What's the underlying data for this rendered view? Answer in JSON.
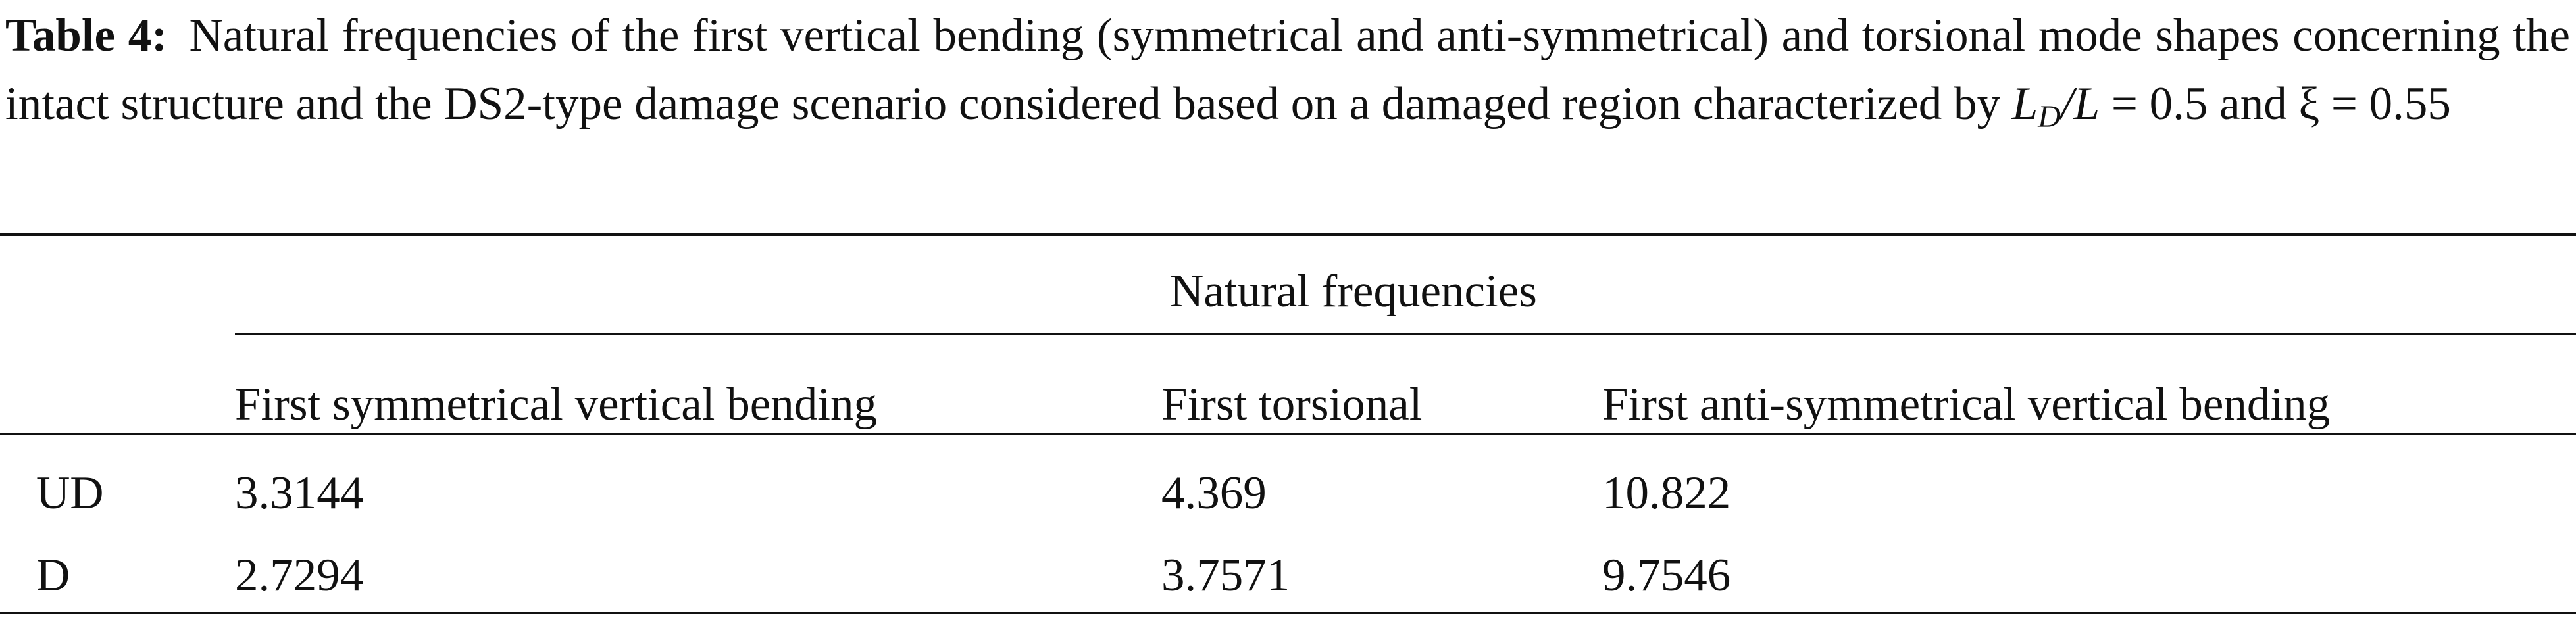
{
  "caption": {
    "label": "Table 4:",
    "text": "Natural frequencies of the first vertical bending (symmetrical and anti-symmetrical) and torsional mode shapes concerning the intact structure and the DS2-type damage scenario considered based on a damaged region characterized by",
    "math": [
      "L",
      "D",
      "/L",
      "= 0.5 and ξ = 0.55"
    ]
  },
  "table": {
    "group_header": "Natural frequencies",
    "columns": [
      "First symmetrical vertical bending",
      "First torsional",
      "First anti-symmetrical vertical bending"
    ],
    "rows": [
      [
        "UD",
        "3.3144",
        "4.369",
        "10.822"
      ],
      [
        "D",
        "2.7294",
        "3.7571",
        "9.7546"
      ]
    ]
  }
}
